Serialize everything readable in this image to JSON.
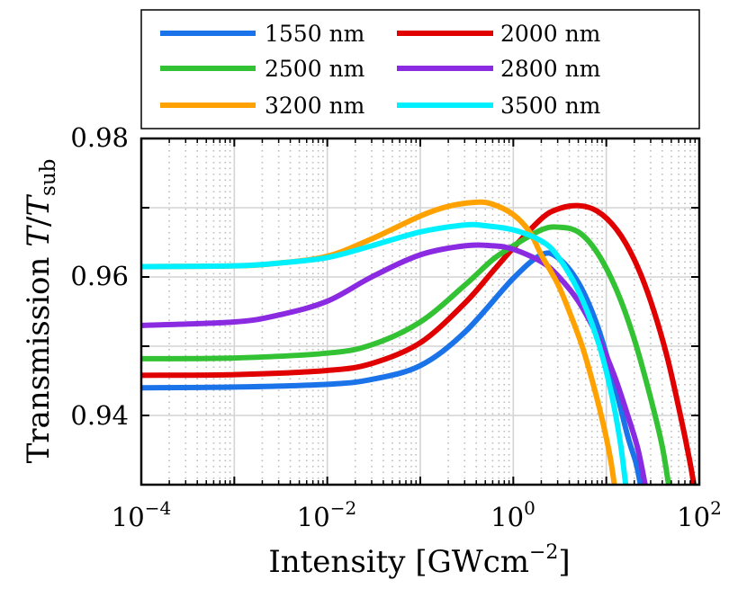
{
  "chart_data": {
    "type": "line",
    "title": "",
    "xlabel": "Intensity [GWcm⁻²]",
    "xlabel_parts": {
      "main": "Intensity [GWcm",
      "sup": "−2",
      "close": "]"
    },
    "ylabel": "Transmission T/T_sub",
    "ylabel_parts": {
      "main": "Transmission ",
      "var": "T",
      "slash": "/",
      "var2": "T",
      "sub": "sub"
    },
    "xscale": "log",
    "xlim": [
      0.0001,
      100
    ],
    "ylim": [
      0.93,
      0.98
    ],
    "x_ticks": [
      {
        "base": "10",
        "exp": "−4",
        "value": 0.0001
      },
      {
        "base": "10",
        "exp": "−2",
        "value": 0.01
      },
      {
        "base": "10",
        "exp": "0",
        "value": 1
      },
      {
        "base": "10",
        "exp": "2",
        "value": 100
      }
    ],
    "y_ticks": [
      {
        "label": "0.94",
        "value": 0.94
      },
      {
        "label": "0.96",
        "value": 0.96
      },
      {
        "label": "0.98",
        "value": 0.98
      }
    ],
    "grid": true,
    "legend_position": "top",
    "series": [
      {
        "name": "1550 nm",
        "color": "#1a73e8",
        "x": [
          0.0001,
          0.001,
          0.01,
          0.03,
          0.1,
          0.3,
          1,
          2,
          3,
          5,
          8,
          12,
          17,
          21,
          24
        ],
        "y": [
          0.944,
          0.9441,
          0.9445,
          0.9452,
          0.9472,
          0.952,
          0.9598,
          0.9632,
          0.9628,
          0.9592,
          0.953,
          0.945,
          0.937,
          0.933,
          0.929
        ]
      },
      {
        "name": "2000 nm",
        "color": "#e00000",
        "x": [
          0.0001,
          0.001,
          0.01,
          0.03,
          0.1,
          0.3,
          0.6,
          1,
          2,
          3,
          5,
          8,
          13,
          20,
          30,
          45,
          65,
          80,
          90
        ],
        "y": [
          0.9458,
          0.9459,
          0.9465,
          0.9475,
          0.9505,
          0.9562,
          0.9608,
          0.9642,
          0.9684,
          0.9698,
          0.9703,
          0.9695,
          0.9668,
          0.9625,
          0.9565,
          0.9485,
          0.939,
          0.933,
          0.929
        ]
      },
      {
        "name": "2500 nm",
        "color": "#33c233",
        "x": [
          0.0001,
          0.001,
          0.01,
          0.03,
          0.1,
          0.3,
          0.6,
          1,
          2,
          3,
          5,
          8,
          13,
          20,
          30,
          40,
          48
        ],
        "y": [
          0.9482,
          0.9483,
          0.949,
          0.9502,
          0.9535,
          0.9588,
          0.9625,
          0.9645,
          0.9668,
          0.9672,
          0.9665,
          0.9635,
          0.958,
          0.951,
          0.9425,
          0.9355,
          0.929
        ]
      },
      {
        "name": "2800 nm",
        "color": "#8a2be2",
        "x": [
          0.0001,
          0.001,
          0.003,
          0.01,
          0.03,
          0.1,
          0.3,
          0.6,
          1,
          2,
          3,
          5,
          8,
          12,
          17,
          22,
          27
        ],
        "y": [
          0.953,
          0.9535,
          0.9545,
          0.9565,
          0.96,
          0.9632,
          0.9645,
          0.9645,
          0.964,
          0.9622,
          0.9602,
          0.9565,
          0.9515,
          0.946,
          0.94,
          0.935,
          0.929
        ]
      },
      {
        "name": "3200 nm",
        "color": "#ffa200",
        "x": [
          0.0001,
          0.001,
          0.003,
          0.01,
          0.03,
          0.1,
          0.2,
          0.4,
          0.6,
          1,
          1.5,
          2,
          3,
          4,
          5.5,
          7,
          9,
          11,
          12.5
        ],
        "y": [
          0.9615,
          0.9616,
          0.962,
          0.963,
          0.9655,
          0.9688,
          0.9702,
          0.9708,
          0.9705,
          0.969,
          0.9665,
          0.9632,
          0.959,
          0.955,
          0.95,
          0.9452,
          0.9395,
          0.934,
          0.929
        ]
      },
      {
        "name": "3500 nm",
        "color": "#00f0ff",
        "x": [
          0.0001,
          0.001,
          0.003,
          0.01,
          0.03,
          0.1,
          0.3,
          0.5,
          1,
          2,
          3,
          5,
          8,
          11,
          14,
          16.5
        ],
        "y": [
          0.9615,
          0.9616,
          0.962,
          0.9628,
          0.9645,
          0.9665,
          0.9675,
          0.9674,
          0.9668,
          0.9652,
          0.963,
          0.958,
          0.951,
          0.944,
          0.9365,
          0.929
        ]
      }
    ]
  }
}
